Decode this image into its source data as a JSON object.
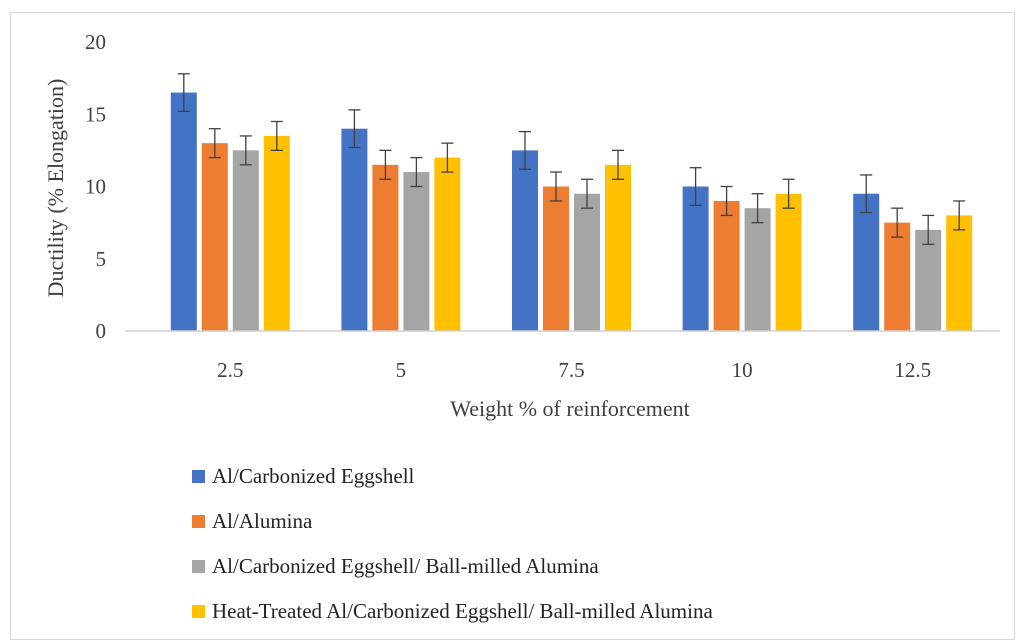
{
  "chart_data": {
    "type": "bar",
    "title": "",
    "xlabel": "Weight % of reinforcement",
    "ylabel": "Ductility (% Elongation)",
    "categories": [
      "2.5",
      "5",
      "7.5",
      "10",
      "12.5"
    ],
    "ylim": [
      0,
      20
    ],
    "yticks": [
      "0",
      "5",
      "10",
      "15",
      "20"
    ],
    "grid": false,
    "legend_position": "bottom-left",
    "series": [
      {
        "name": "Al/Carbonized Eggshell",
        "color": "#4472c4",
        "values": [
          16.5,
          14,
          12.5,
          10,
          9.5
        ],
        "errors": [
          1.3,
          1.3,
          1.3,
          1.3,
          1.3
        ]
      },
      {
        "name": "Al/Alumina",
        "color": "#ed7d31",
        "values": [
          13,
          11.5,
          10,
          9,
          7.5
        ],
        "errors": [
          1,
          1,
          1,
          1,
          1
        ]
      },
      {
        "name": "Al/Carbonized Eggshell/ Ball-milled Alumina",
        "color": "#a5a5a5",
        "values": [
          12.5,
          11,
          9.5,
          8.5,
          7
        ],
        "errors": [
          1,
          1,
          1,
          1,
          1
        ]
      },
      {
        "name": "Heat-Treated Al/Carbonized Eggshell/ Ball-milled Alumina",
        "color": "#ffc000",
        "values": [
          13.5,
          12,
          11.5,
          9.5,
          8
        ],
        "errors": [
          1,
          1,
          1,
          1,
          1
        ]
      }
    ]
  }
}
